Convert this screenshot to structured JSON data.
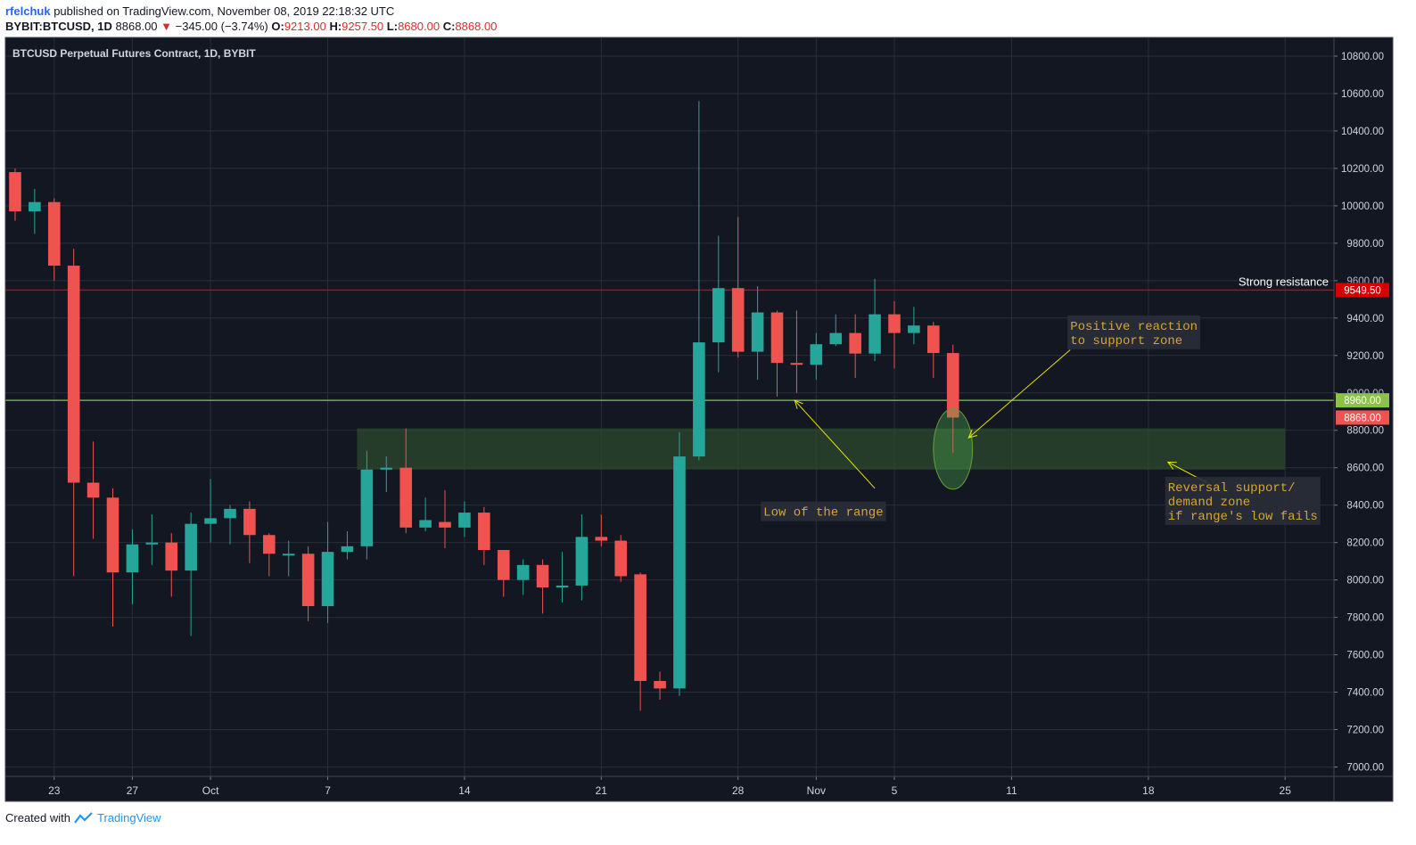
{
  "header": {
    "user": "rfelchuk",
    "published": "published on TradingView.com, November 08, 2019 22:18:32 UTC",
    "symbol": "BYBIT:BTCUSD, 1D",
    "last": "8868.00",
    "change_arrow": "▼",
    "change": "−345.00 (−3.74%)",
    "o_label": "O:",
    "o": "9213.00",
    "h_label": "H:",
    "h": "9257.50",
    "l_label": "L:",
    "l": "8680.00",
    "c_label": "C:",
    "c": "8868.00"
  },
  "footer": {
    "created": "Created with",
    "brand": "TradingView"
  },
  "colors": {
    "background": "#131722",
    "up": "#26a69a",
    "down": "#ef5350",
    "grid": "#2a2e39",
    "resistance": "#d50000",
    "support_line": "#8bc34a",
    "zone": "#2e4a2e",
    "annotation_text": "#d4a537",
    "arrow": "#e6e600"
  },
  "chart_data": {
    "type": "candlestick",
    "title": "BTCUSD Perpetual Futures Contract, 1D, BYBIT",
    "ylim": [
      6950,
      10900
    ],
    "y_ticks": [
      7000,
      7200,
      7400,
      7600,
      7800,
      8000,
      8200,
      8400,
      8600,
      8800,
      9000,
      9200,
      9400,
      9600,
      9800,
      10000,
      10200,
      10400,
      10600,
      10800
    ],
    "y_tick_labels": [
      "7000.00",
      "7200.00",
      "7400.00",
      "7600.00",
      "7800.00",
      "8000.00",
      "8200.00",
      "8400.00",
      "8600.00",
      "8800.00",
      "9000.00",
      "9200.00",
      "9400.00",
      "9600.00",
      "9800.00",
      "10000.00",
      "10200.00",
      "10400.00",
      "10600.00",
      "10800.00"
    ],
    "x_ticks": [
      {
        "label": "23",
        "index": 2
      },
      {
        "label": "27",
        "index": 6
      },
      {
        "label": "Oct",
        "index": 10
      },
      {
        "label": "7",
        "index": 16
      },
      {
        "label": "14",
        "index": 23
      },
      {
        "label": "21",
        "index": 30
      },
      {
        "label": "28",
        "index": 37
      },
      {
        "label": "Nov",
        "index": 41
      },
      {
        "label": "5",
        "index": 45
      },
      {
        "label": "11",
        "index": 51
      },
      {
        "label": "18",
        "index": 58
      },
      {
        "label": "25",
        "index": 65
      }
    ],
    "x_range": [
      -0.5,
      67.5
    ],
    "candles": [
      {
        "o": 10180,
        "h": 10200,
        "l": 9920,
        "c": 9970
      },
      {
        "o": 9970,
        "h": 10090,
        "l": 9850,
        "c": 10020
      },
      {
        "o": 10020,
        "h": 10040,
        "l": 9600,
        "c": 9680
      },
      {
        "o": 9680,
        "h": 9770,
        "l": 8020,
        "c": 8520
      },
      {
        "o": 8520,
        "h": 8740,
        "l": 8220,
        "c": 8440
      },
      {
        "o": 8440,
        "h": 8490,
        "l": 7750,
        "c": 8040
      },
      {
        "o": 8040,
        "h": 8270,
        "l": 7870,
        "c": 8190
      },
      {
        "o": 8190,
        "h": 8350,
        "l": 8080,
        "c": 8200
      },
      {
        "o": 8200,
        "h": 8250,
        "l": 7910,
        "c": 8050
      },
      {
        "o": 8050,
        "h": 8360,
        "l": 7700,
        "c": 8300
      },
      {
        "o": 8300,
        "h": 8540,
        "l": 8200,
        "c": 8330
      },
      {
        "o": 8330,
        "h": 8400,
        "l": 8190,
        "c": 8380
      },
      {
        "o": 8380,
        "h": 8420,
        "l": 8090,
        "c": 8240
      },
      {
        "o": 8240,
        "h": 8250,
        "l": 8020,
        "c": 8140
      },
      {
        "o": 8140,
        "h": 8210,
        "l": 8020,
        "c": 8140
      },
      {
        "o": 8140,
        "h": 8180,
        "l": 7780,
        "c": 7860
      },
      {
        "o": 7860,
        "h": 8310,
        "l": 7770,
        "c": 8150
      },
      {
        "o": 8150,
        "h": 8260,
        "l": 8110,
        "c": 8180
      },
      {
        "o": 8180,
        "h": 8690,
        "l": 8110,
        "c": 8590
      },
      {
        "o": 8590,
        "h": 8660,
        "l": 8470,
        "c": 8600
      },
      {
        "o": 8600,
        "h": 8810,
        "l": 8250,
        "c": 8280
      },
      {
        "o": 8280,
        "h": 8440,
        "l": 8260,
        "c": 8320
      },
      {
        "o": 8310,
        "h": 8480,
        "l": 8170,
        "c": 8280
      },
      {
        "o": 8280,
        "h": 8420,
        "l": 8230,
        "c": 8360
      },
      {
        "o": 8360,
        "h": 8390,
        "l": 8080,
        "c": 8160
      },
      {
        "o": 8160,
        "h": 8160,
        "l": 7910,
        "c": 8000
      },
      {
        "o": 8000,
        "h": 8110,
        "l": 7920,
        "c": 8080
      },
      {
        "o": 8080,
        "h": 8110,
        "l": 7820,
        "c": 7960
      },
      {
        "o": 7960,
        "h": 8150,
        "l": 7880,
        "c": 7970
      },
      {
        "o": 7970,
        "h": 8350,
        "l": 7890,
        "c": 8230
      },
      {
        "o": 8230,
        "h": 8350,
        "l": 8180,
        "c": 8210
      },
      {
        "o": 8210,
        "h": 8240,
        "l": 7990,
        "c": 8020
      },
      {
        "o": 8030,
        "h": 8040,
        "l": 7300,
        "c": 7460
      },
      {
        "o": 7460,
        "h": 7510,
        "l": 7360,
        "c": 7420
      },
      {
        "o": 7420,
        "h": 8790,
        "l": 7380,
        "c": 8660
      },
      {
        "o": 8660,
        "h": 10560,
        "l": 8640,
        "c": 9270
      },
      {
        "o": 9270,
        "h": 9840,
        "l": 9110,
        "c": 9560
      },
      {
        "o": 9560,
        "h": 9940,
        "l": 9190,
        "c": 9220
      },
      {
        "o": 9220,
        "h": 9570,
        "l": 9070,
        "c": 9430
      },
      {
        "o": 9430,
        "h": 9440,
        "l": 8980,
        "c": 9160
      },
      {
        "o": 9160,
        "h": 9440,
        "l": 9000,
        "c": 9150
      },
      {
        "o": 9150,
        "h": 9320,
        "l": 9070,
        "c": 9260
      },
      {
        "o": 9260,
        "h": 9420,
        "l": 9250,
        "c": 9320
      },
      {
        "o": 9320,
        "h": 9420,
        "l": 9080,
        "c": 9210
      },
      {
        "o": 9210,
        "h": 9610,
        "l": 9170,
        "c": 9420
      },
      {
        "o": 9420,
        "h": 9490,
        "l": 9130,
        "c": 9320
      },
      {
        "o": 9320,
        "h": 9460,
        "l": 9260,
        "c": 9360
      },
      {
        "o": 9360,
        "h": 9380,
        "l": 9080,
        "c": 9213
      },
      {
        "o": 9213,
        "h": 9257.5,
        "l": 8680,
        "c": 8868
      }
    ],
    "support_zone": {
      "y_low": 8590,
      "y_high": 8810,
      "x_start": 17.5,
      "x_end": 65
    },
    "levels": [
      {
        "value": 9549.5,
        "label": "9549.50",
        "text": "Strong resistance",
        "color": "#d50000"
      },
      {
        "value": 8960,
        "label": "8960.00",
        "color": "#8bc34a"
      },
      {
        "value": 8868,
        "label": "8868.00",
        "color": "#ef5350"
      }
    ],
    "hidden_tick_labels": [
      {
        "text": "9600.00",
        "y": 9600
      },
      {
        "text": "9000.00",
        "y": 9000
      }
    ],
    "ellipse": {
      "x": 48,
      "y": 8700,
      "rx": 1,
      "ry_val": 215
    },
    "annotations": [
      {
        "lines": [
          "Positive reaction",
          "to support zone"
        ],
        "x": 54,
        "y": 9400
      },
      {
        "lines": [
          "Low of the range"
        ],
        "x": 38.3,
        "y": 8405
      },
      {
        "lines": [
          "Reversal support/",
          "demand zone",
          "if range's low fails"
        ],
        "x": 59,
        "y": 8537
      }
    ],
    "arrows": [
      {
        "from": [
          54,
          9230
        ],
        "to": [
          48.8,
          8760
        ]
      },
      {
        "from": [
          44,
          8490
        ],
        "to": [
          39.9,
          8960
        ]
      },
      {
        "from": [
          61,
          8520
        ],
        "to": [
          59,
          8630
        ]
      }
    ]
  }
}
